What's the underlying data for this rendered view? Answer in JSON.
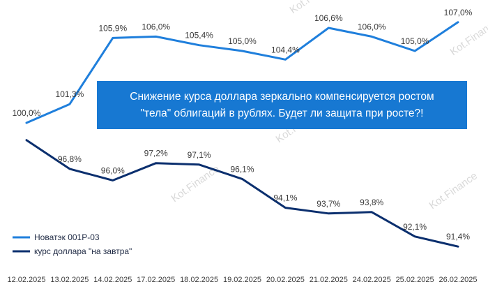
{
  "chart_data": {
    "type": "line",
    "categories": [
      "12.02.2025",
      "13.02.2025",
      "14.02.2025",
      "17.02.2025",
      "18.02.2025",
      "19.02.2025",
      "20.02.2025",
      "21.02.2025",
      "24.02.2025",
      "25.02.2025",
      "26.02.2025"
    ],
    "series": [
      {
        "name": "Новатэк  001Р-03",
        "color": "#1f7fdc",
        "values": [
          100.0,
          101.3,
          105.9,
          106.0,
          105.4,
          105.0,
          104.4,
          106.6,
          106.0,
          105.0,
          107.0
        ],
        "labels": [
          "100,0%",
          "101,3%",
          "105,9%",
          "106,0%",
          "105,4%",
          "105,0%",
          "104,4%",
          "106,6%",
          "106,0%",
          "105,0%",
          "107,0%"
        ]
      },
      {
        "name": "курс доллара \"на завтра\"",
        "color": "#0b2f6e",
        "values": [
          98.8,
          96.8,
          96.0,
          97.2,
          97.1,
          96.1,
          94.1,
          93.7,
          93.8,
          92.1,
          91.4
        ],
        "labels": [
          "",
          "96,8%",
          "96,0%",
          "97,2%",
          "97,1%",
          "96,1%",
          "94,1%",
          "93,7%",
          "93,8%",
          "92,1%",
          "91,4%"
        ]
      }
    ],
    "legend": "bottom-left",
    "grid": false,
    "ylim": [
      90,
      108
    ]
  },
  "callout": {
    "line1": "Снижение курса доллара зеркально компенсируется ростом",
    "line2": "\"тела\" облигаций в рублях. Будет ли защита при росте?!"
  },
  "watermark": {
    "text": "Kot.Finance"
  }
}
